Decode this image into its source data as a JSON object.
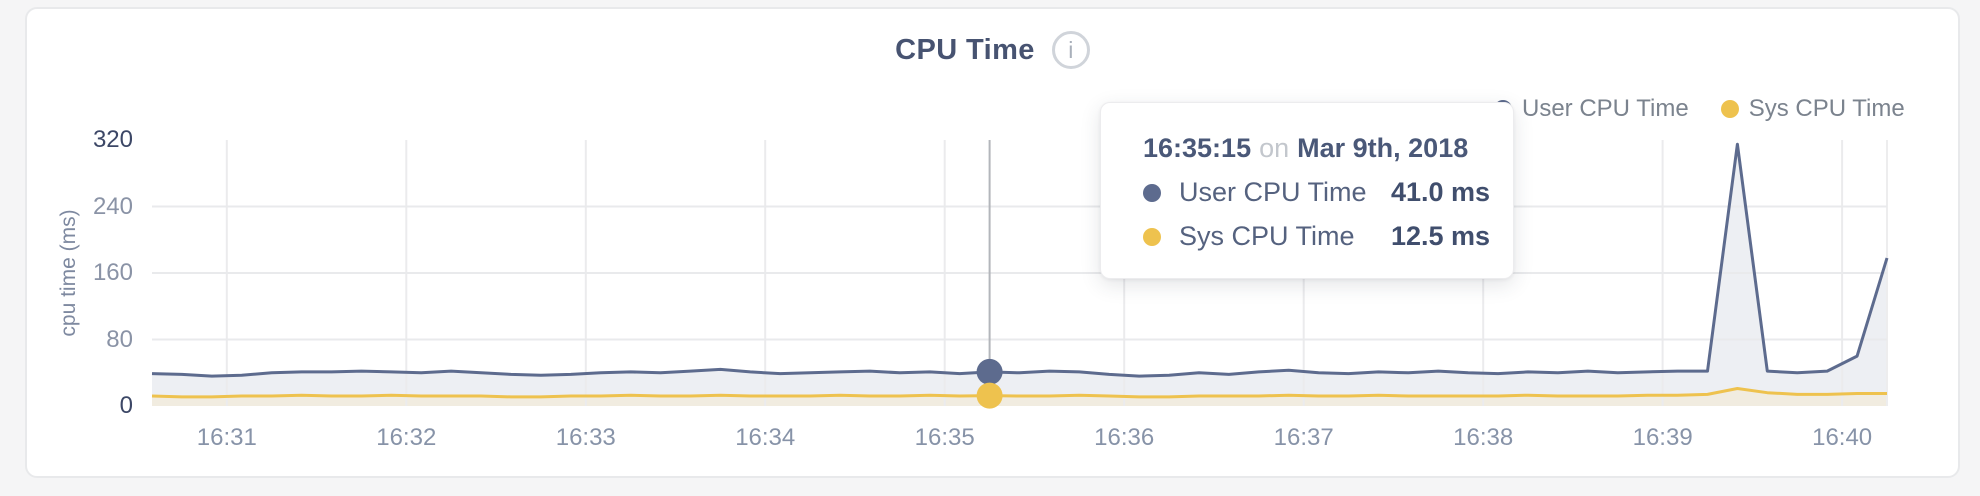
{
  "header": {
    "title": "CPU Time",
    "info_icon": "i"
  },
  "legend": {
    "items": [
      {
        "label": "User CPU Time",
        "color": "#5d6b8e"
      },
      {
        "label": "Sys CPU Time",
        "color": "#eec24e"
      }
    ]
  },
  "tooltip": {
    "time": "16:35:15",
    "connector": "on",
    "date": "Mar 9th, 2018",
    "rows": [
      {
        "label": "User CPU Time",
        "value": "41.0 ms",
        "color": "#5d6b8e"
      },
      {
        "label": "Sys CPU Time",
        "value": "12.5 ms",
        "color": "#eec24e"
      }
    ]
  },
  "chart_data": {
    "type": "area",
    "title": "CPU Time",
    "ylabel": "cpu time (ms)",
    "ylim": [
      0,
      320
    ],
    "y_ticks": [
      0,
      80,
      160,
      240,
      320
    ],
    "y_gridlines": [
      80,
      160,
      240
    ],
    "grid": true,
    "legend_position": "top-right",
    "x_start": "16:30:35",
    "x_step_seconds": 10,
    "x_ticks": [
      "16:31",
      "16:32",
      "16:33",
      "16:34",
      "16:35",
      "16:36",
      "16:37",
      "16:38",
      "16:39",
      "16:40"
    ],
    "hover": {
      "index": 28,
      "time": "16:35:15",
      "date": "Mar 9th, 2018",
      "user_ms": 41.0,
      "sys_ms": 12.5
    },
    "series": [
      {
        "name": "User CPU Time",
        "color": "#5d6b8e",
        "fill": "#edeff3",
        "values": [
          39,
          38,
          36,
          37,
          40,
          41,
          41,
          42,
          41,
          40,
          42,
          40,
          38,
          37,
          38,
          40,
          41,
          40,
          42,
          44,
          41,
          39,
          40,
          41,
          42,
          40,
          41,
          39,
          41,
          40,
          42,
          41,
          38,
          36,
          37,
          40,
          38,
          41,
          43,
          40,
          39,
          41,
          40,
          42,
          40,
          39,
          41,
          40,
          42,
          40,
          41,
          42,
          42,
          315,
          42,
          40,
          42,
          60,
          178
        ]
      },
      {
        "name": "Sys CPU Time",
        "color": "#eec24e",
        "fill": "#f1ece0",
        "values": [
          12,
          11,
          11,
          12,
          12,
          13,
          12,
          12,
          13,
          12,
          12,
          12,
          11,
          11,
          12,
          12,
          13,
          12,
          12,
          13,
          12,
          12,
          12,
          13,
          12,
          12,
          13,
          12,
          12.5,
          12,
          12,
          13,
          12,
          11,
          11,
          12,
          12,
          12,
          13,
          12,
          12,
          13,
          12,
          12,
          12,
          12,
          13,
          12,
          12,
          12,
          13,
          13,
          14,
          21,
          16,
          14,
          14,
          15,
          15
        ]
      }
    ]
  }
}
